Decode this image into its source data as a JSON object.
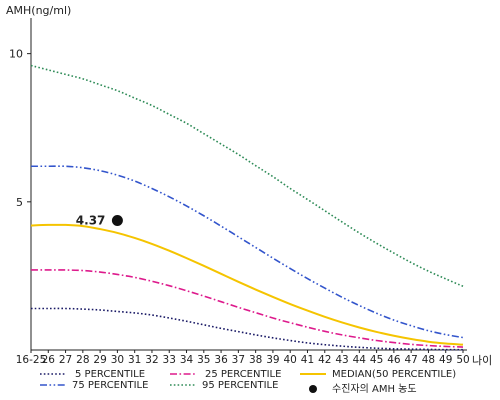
{
  "chart_data": {
    "type": "line",
    "ylabel": "AMH(ng/ml)",
    "xlabel": "나이",
    "categories": [
      "16-25",
      "26",
      "27",
      "28",
      "29",
      "30",
      "31",
      "32",
      "33",
      "34",
      "35",
      "36",
      "37",
      "38",
      "39",
      "40",
      "41",
      "42",
      "43",
      "44",
      "45",
      "46",
      "47",
      "48",
      "49",
      "50"
    ],
    "yticks": [
      5,
      10
    ],
    "ylim": [
      0,
      11
    ],
    "series": [
      {
        "name": "5 PERCENTILE",
        "color": "#1a1a66",
        "style": "dotted",
        "values": [
          1.4,
          1.4,
          1.4,
          1.38,
          1.35,
          1.3,
          1.25,
          1.18,
          1.08,
          0.97,
          0.85,
          0.73,
          0.62,
          0.51,
          0.41,
          0.32,
          0.24,
          0.18,
          0.13,
          0.09,
          0.06,
          0.04,
          0.03,
          0.02,
          0.01,
          0.01
        ]
      },
      {
        "name": "25 PERCENTILE",
        "color": "#dd1a8c",
        "style": "dashdot",
        "values": [
          2.7,
          2.7,
          2.7,
          2.68,
          2.63,
          2.55,
          2.45,
          2.32,
          2.17,
          2.0,
          1.82,
          1.63,
          1.44,
          1.26,
          1.08,
          0.92,
          0.77,
          0.63,
          0.51,
          0.41,
          0.32,
          0.25,
          0.19,
          0.15,
          0.12,
          0.1
        ]
      },
      {
        "name": "MEDIAN(50 PERCENTILE)",
        "color": "#f5c400",
        "style": "solid",
        "values": [
          4.2,
          4.22,
          4.22,
          4.18,
          4.08,
          3.95,
          3.78,
          3.58,
          3.35,
          3.1,
          2.84,
          2.57,
          2.3,
          2.04,
          1.79,
          1.55,
          1.33,
          1.12,
          0.93,
          0.76,
          0.61,
          0.48,
          0.37,
          0.28,
          0.22,
          0.18
        ]
      },
      {
        "name": "75 PERCENTILE",
        "color": "#3355cc",
        "style": "dashdotdot",
        "values": [
          6.2,
          6.2,
          6.2,
          6.15,
          6.05,
          5.9,
          5.7,
          5.45,
          5.17,
          4.86,
          4.53,
          4.18,
          3.82,
          3.46,
          3.1,
          2.75,
          2.41,
          2.09,
          1.78,
          1.5,
          1.24,
          1.01,
          0.82,
          0.65,
          0.52,
          0.42
        ]
      },
      {
        "name": "95 PERCENTILE",
        "color": "#2e8b57",
        "style": "dotted",
        "values": [
          9.6,
          9.45,
          9.3,
          9.15,
          8.95,
          8.75,
          8.5,
          8.25,
          7.95,
          7.65,
          7.3,
          6.95,
          6.6,
          6.22,
          5.85,
          5.45,
          5.08,
          4.7,
          4.32,
          3.95,
          3.6,
          3.27,
          2.95,
          2.66,
          2.4,
          2.15
        ]
      }
    ],
    "point": {
      "name": "수진자의 AMH 농도",
      "x": "30",
      "y": 4.37,
      "label": "4.37",
      "color": "#111111"
    },
    "legend_placement": "bottom",
    "grid": false
  }
}
